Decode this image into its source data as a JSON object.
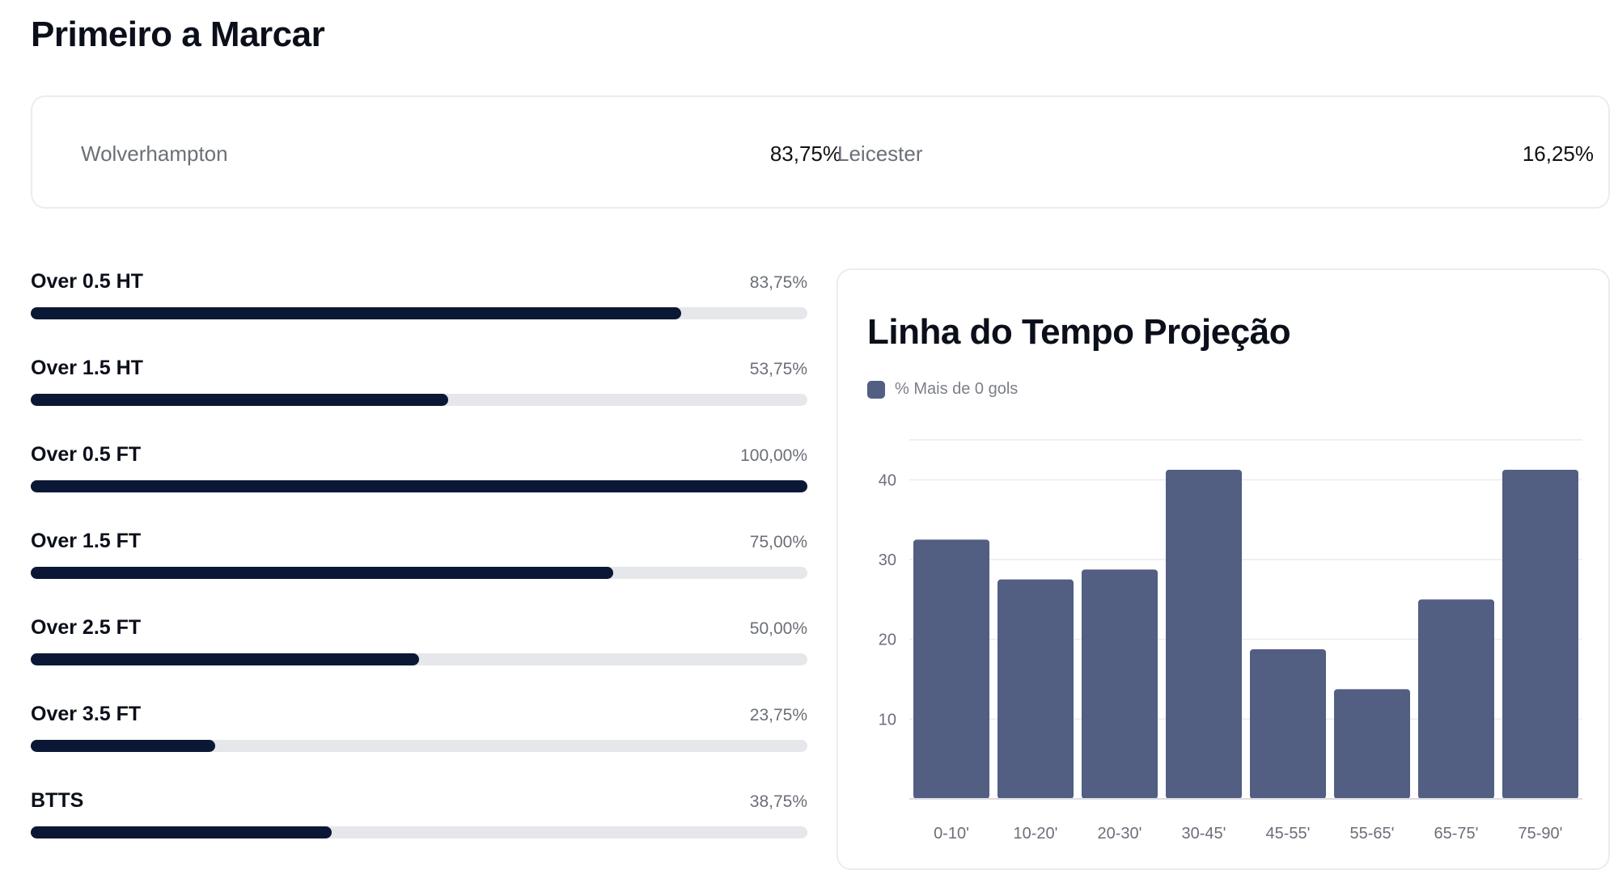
{
  "title": "Primeiro a Marcar",
  "first_scorer": {
    "home": {
      "name": "Wolverhampton",
      "pct": "83,75%"
    },
    "away": {
      "name": "Leicester",
      "pct": "16,25%"
    }
  },
  "markets": [
    {
      "label": "Over 0.5 HT",
      "pct_text": "83,75%",
      "value": 83.75
    },
    {
      "label": "Over 1.5 HT",
      "pct_text": "53,75%",
      "value": 53.75
    },
    {
      "label": "Over 0.5 FT",
      "pct_text": "100,00%",
      "value": 100
    },
    {
      "label": "Over 1.5 FT",
      "pct_text": "75,00%",
      "value": 75
    },
    {
      "label": "Over 2.5 FT",
      "pct_text": "50,00%",
      "value": 50
    },
    {
      "label": "Over 3.5 FT",
      "pct_text": "23,75%",
      "value": 23.75
    },
    {
      "label": "BTTS",
      "pct_text": "38,75%",
      "value": 38.75
    }
  ],
  "timeline": {
    "title": "Linha do Tempo Projeção",
    "legend_label": "% Mais de 0 gols"
  },
  "colors": {
    "bar_fill": "#0b1835",
    "track": "#e6e7eb",
    "chart_bar": "#525e82"
  },
  "chart_data": {
    "type": "bar",
    "title": "Linha do Tempo Projeção",
    "categories": [
      "0-10'",
      "10-20'",
      "20-30'",
      "30-45'",
      "45-55'",
      "55-65'",
      "65-75'",
      "75-90'"
    ],
    "series": [
      {
        "name": "% Mais de 0 gols",
        "values": [
          32.5,
          27.5,
          28.75,
          41.25,
          18.75,
          13.75,
          25,
          41.25
        ]
      }
    ],
    "ylim": [
      0,
      45
    ],
    "yticks": [
      10,
      20,
      30,
      40
    ],
    "xlabel": "",
    "ylabel": "",
    "grid": true,
    "legend": "top-left"
  }
}
